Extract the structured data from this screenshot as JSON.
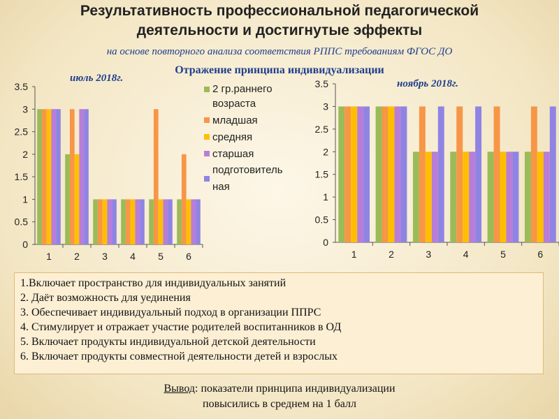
{
  "title_line1": "Результативность профессиональной педагогической",
  "title_line2": "деятельности  и достигнутые эффекты",
  "subtitle": "на основе повторного анализа  соответствия РППС требованиям ФГОС ДО",
  "section_title": "Отражение принципа индивидуализации",
  "date_left": "июль 2018г.",
  "date_right": "ноябрь 2018г.",
  "colors": [
    "#9bbb59",
    "#f79646",
    "#ffbf00",
    "#b87ed7",
    "#8f84e3"
  ],
  "legend": {
    "lines": [
      "2 гр.раннего",
      "возраста",
      "младшая",
      "средняя",
      "старшая",
      "подготовитель",
      "ная"
    ]
  },
  "chart_data": [
    {
      "type": "bar",
      "title": "июль 2018г.",
      "categories": [
        "1",
        "2",
        "3",
        "4",
        "5",
        "6"
      ],
      "ylim": [
        0,
        3.5
      ],
      "yticks": [
        "0",
        "0.5",
        "1",
        "1.5",
        "2",
        "2.5",
        "3",
        "3.5"
      ],
      "series": [
        {
          "name": "2 гр.раннего возраста",
          "values": [
            3,
            2,
            1,
            1,
            1,
            1
          ]
        },
        {
          "name": "младшая",
          "values": [
            3,
            3,
            1,
            1,
            3,
            2
          ]
        },
        {
          "name": "средняя",
          "values": [
            3,
            2,
            1,
            1,
            1,
            1
          ]
        },
        {
          "name": "старшая",
          "values": [
            3,
            3,
            1,
            1,
            1,
            1
          ]
        },
        {
          "name": "подготовительная",
          "values": [
            3,
            3,
            1,
            1,
            1,
            1
          ]
        }
      ]
    },
    {
      "type": "bar",
      "title": "ноябрь 2018г.",
      "categories": [
        "1",
        "2",
        "3",
        "4",
        "5",
        "6"
      ],
      "ylim": [
        0,
        3.5
      ],
      "yticks": [
        "0",
        "0.5",
        "1",
        "1.5",
        "2",
        "2.5",
        "3",
        "3.5"
      ],
      "series": [
        {
          "name": "2 гр.раннего возраста",
          "values": [
            3,
            3,
            2,
            2,
            2,
            2
          ]
        },
        {
          "name": "младшая",
          "values": [
            3,
            3,
            3,
            3,
            3,
            3
          ]
        },
        {
          "name": "средняя",
          "values": [
            3,
            3,
            2,
            2,
            2,
            2
          ]
        },
        {
          "name": "старшая",
          "values": [
            3,
            3,
            2,
            2,
            2,
            2
          ]
        },
        {
          "name": "подготовительная",
          "values": [
            3,
            3,
            3,
            3,
            2,
            3
          ]
        }
      ]
    }
  ],
  "criteria": [
    "1.Включает пространство для индивидуальных занятий",
    "2. Даёт возможность для уединения",
    "3. Обеспечивает индивидуальный подход в организации ППРС",
    "4. Стимулирует и отражает участие родителей воспитанников в ОД",
    "5. Включает продукты индивидуальной детской деятельности",
    "6. Включает продукты совместной деятельности детей и взрослых"
  ],
  "conclusion": {
    "label": "Вывод",
    "line1_rest": ": показатели принципа индивидуализации",
    "line2": "повысились в среднем на 1 балл"
  }
}
